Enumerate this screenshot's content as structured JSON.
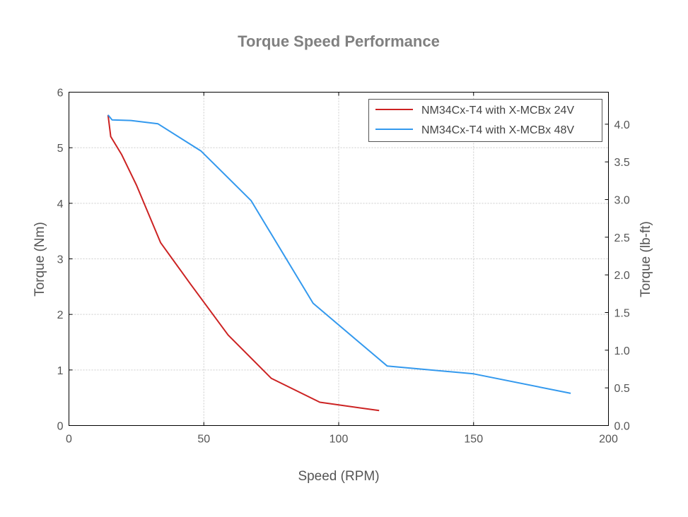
{
  "chart_data": {
    "type": "line",
    "title": "Torque Speed Performance",
    "xlabel": "Speed (RPM)",
    "ylabel": "Torque (Nm)",
    "y2label": "Torque (lb-ft)",
    "xlim": [
      0,
      200
    ],
    "ylim": [
      0,
      6
    ],
    "y2lim": [
      0,
      4.4254
    ],
    "xticks": [
      "0",
      "50",
      "100",
      "150",
      "200"
    ],
    "yticks": [
      "0",
      "1",
      "2",
      "3",
      "4",
      "5",
      "6"
    ],
    "y2ticks": [
      "0.0",
      "0.5",
      "1.0",
      "1.5",
      "2.0",
      "2.5",
      "3.0",
      "3.5",
      "4.0"
    ],
    "grid": true,
    "legend_position": "top-right",
    "series": [
      {
        "name": "NM34Cx-T4 with X-MCBx 24V",
        "color": "#cc2222",
        "x": [
          14.5,
          15.5,
          19.5,
          25,
          34,
          45,
          59,
          75,
          93,
          115
        ],
        "y": [
          5.59,
          5.2,
          4.88,
          4.33,
          3.29,
          2.55,
          1.63,
          0.85,
          0.42,
          0.27
        ]
      },
      {
        "name": "NM34Cx-T4 with X-MCBx 48V",
        "color": "#3399ee",
        "x": [
          14.5,
          16,
          23,
          33,
          49,
          67.5,
          90.5,
          118,
          150,
          186
        ],
        "y": [
          5.59,
          5.5,
          5.49,
          5.43,
          4.94,
          4.05,
          2.2,
          1.07,
          0.93,
          0.58
        ]
      }
    ]
  }
}
